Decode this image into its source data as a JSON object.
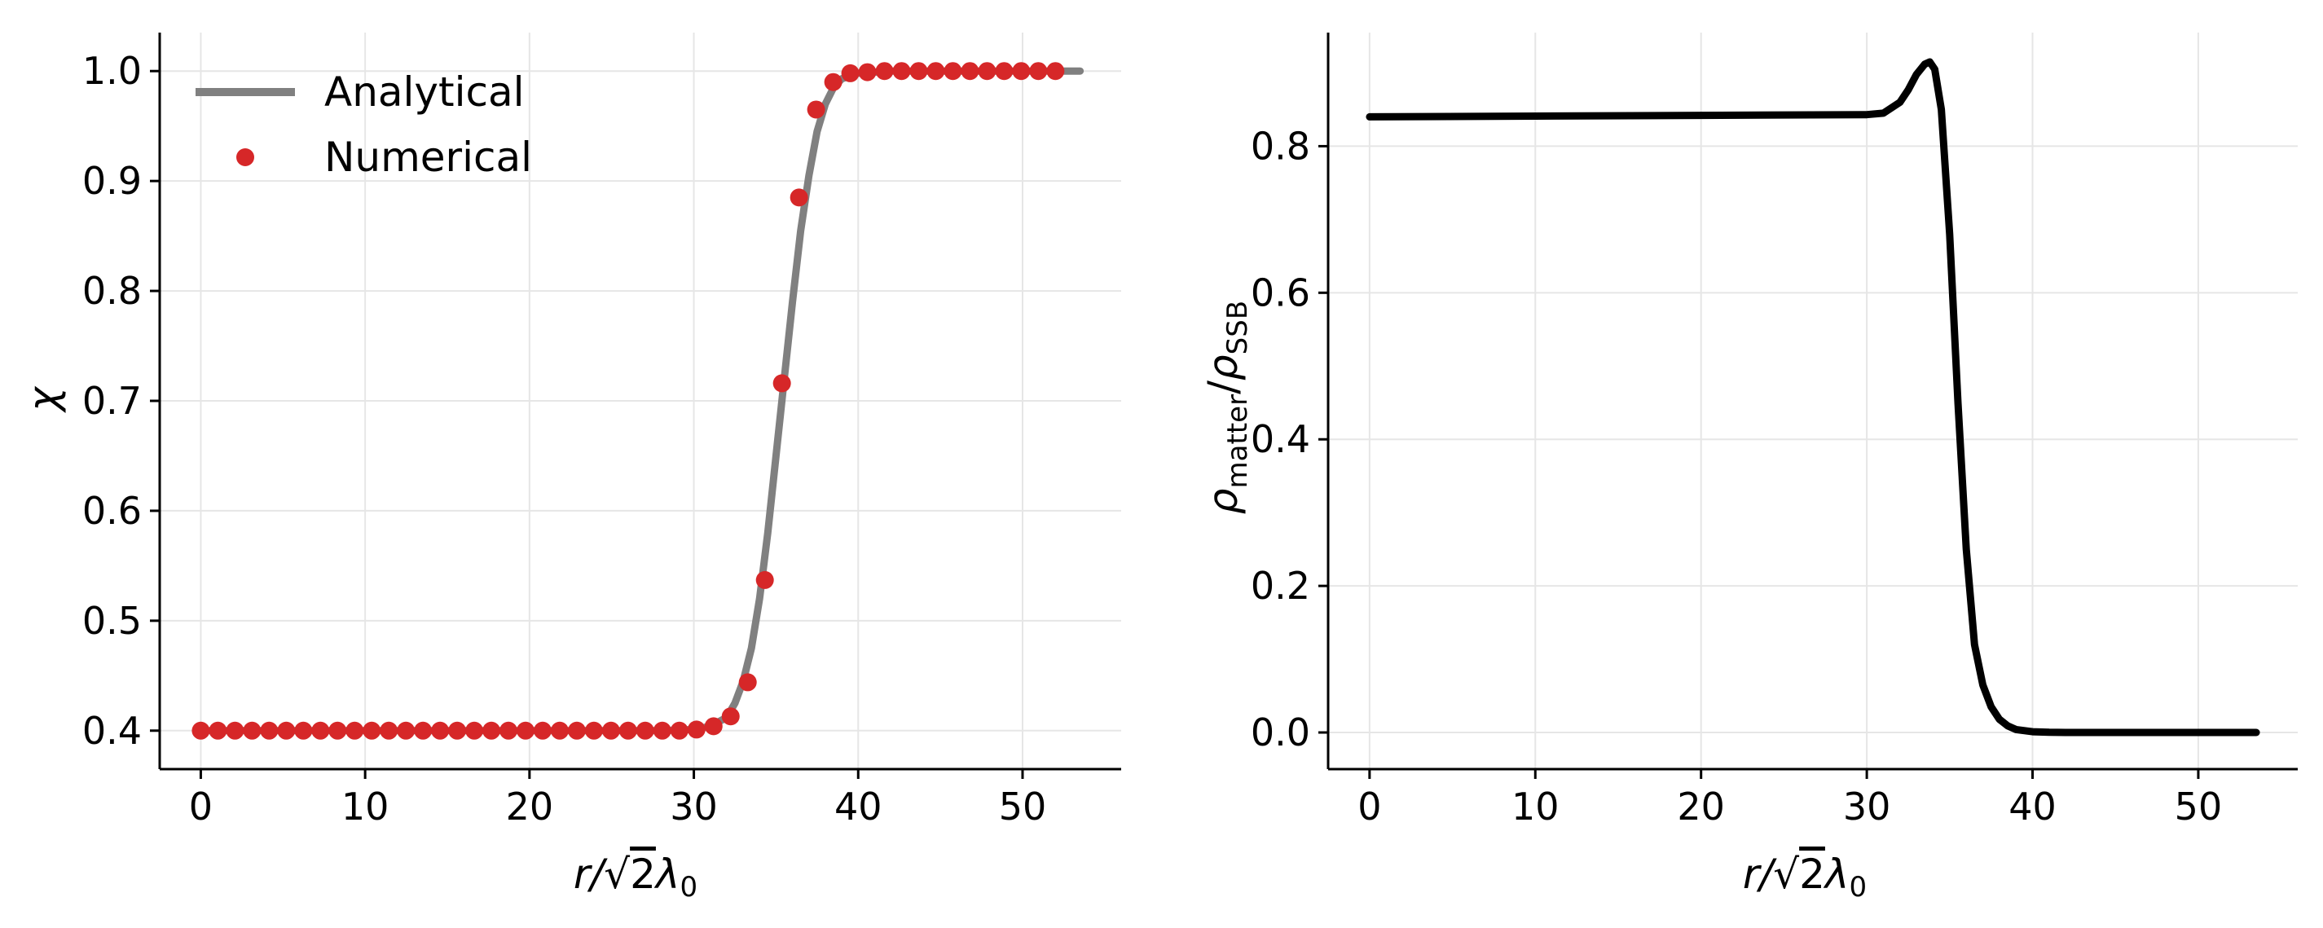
{
  "chart_data": [
    {
      "type": "line",
      "xlabel": "r/√2λ₀",
      "xlabel_parts": {
        "main": "r/",
        "sqrt_symbol": "√",
        "sqrt_arg": "2",
        "lambda": "λ",
        "sub": "0"
      },
      "ylabel": "χ",
      "xlim": [
        -2.5,
        56
      ],
      "ylim": [
        0.365,
        1.035
      ],
      "xticks": [
        0,
        10,
        20,
        30,
        40,
        50
      ],
      "xtick_labels": [
        "0",
        "10",
        "20",
        "30",
        "40",
        "50"
      ],
      "yticks": [
        0.4,
        0.5,
        0.6,
        0.7,
        0.8,
        0.9,
        1.0
      ],
      "ytick_labels": [
        "0.4",
        "0.5",
        "0.6",
        "0.7",
        "0.8",
        "0.9",
        "1.0"
      ],
      "grid": true,
      "legend": {
        "placement": "top-left",
        "entries": [
          {
            "label": "Analytical",
            "marker": "line",
            "color": "#808080"
          },
          {
            "label": "Numerical",
            "marker": "dot",
            "color": "#d62728"
          }
        ]
      },
      "series": [
        {
          "name": "Analytical",
          "style": "line",
          "color": "#808080",
          "x": [
            0,
            5,
            10,
            15,
            20,
            25,
            28,
            30,
            31,
            32,
            32.5,
            33,
            33.5,
            34,
            34.5,
            35,
            35.5,
            36,
            36.5,
            37,
            37.5,
            38,
            38.5,
            39,
            40,
            41,
            42,
            45,
            50,
            53.5
          ],
          "y": [
            0.4,
            0.4,
            0.4,
            0.4,
            0.4,
            0.4,
            0.4,
            0.401,
            0.404,
            0.412,
            0.425,
            0.445,
            0.475,
            0.52,
            0.58,
            0.65,
            0.72,
            0.79,
            0.855,
            0.905,
            0.945,
            0.97,
            0.985,
            0.993,
            0.998,
            0.999,
            1.0,
            1.0,
            1.0,
            1.0
          ]
        },
        {
          "name": "Numerical",
          "style": "scatter",
          "color": "#d62728",
          "x": [
            0,
            1.04,
            2.08,
            3.12,
            4.16,
            5.2,
            6.24,
            7.28,
            8.32,
            9.36,
            10.4,
            11.44,
            12.48,
            13.52,
            14.56,
            15.6,
            16.64,
            17.68,
            18.72,
            19.76,
            20.8,
            21.84,
            22.88,
            23.92,
            24.96,
            26.0,
            27.04,
            28.08,
            29.12,
            30.16,
            31.2,
            32.24,
            33.28,
            34.32,
            35.36,
            36.4,
            37.44,
            38.48,
            39.52,
            40.56,
            41.6,
            42.64,
            43.68,
            44.72,
            45.76,
            46.8,
            47.84,
            48.88,
            49.92,
            50.96,
            52.0
          ],
          "y": [
            0.4,
            0.4,
            0.4,
            0.4,
            0.4,
            0.4,
            0.4,
            0.4,
            0.4,
            0.4,
            0.4,
            0.4,
            0.4,
            0.4,
            0.4,
            0.4,
            0.4,
            0.4,
            0.4,
            0.4,
            0.4,
            0.4,
            0.4,
            0.4,
            0.4,
            0.4,
            0.4,
            0.4,
            0.4,
            0.401,
            0.404,
            0.413,
            0.444,
            0.537,
            0.716,
            0.885,
            0.965,
            0.99,
            0.998,
            0.999,
            1.0,
            1.0,
            1.0,
            1.0,
            1.0,
            1.0,
            1.0,
            1.0,
            1.0,
            1.0,
            1.0
          ]
        }
      ]
    },
    {
      "type": "line",
      "xlabel": "r/√2λ₀",
      "xlabel_parts": {
        "main": "r/",
        "sqrt_symbol": "√",
        "sqrt_arg": "2",
        "lambda": "λ",
        "sub": "0"
      },
      "ylabel": "ρmatter/ρSSB",
      "ylabel_parts": {
        "rho": "ρ",
        "sub1": "matter",
        "slash": "/",
        "sub2": "SSB"
      },
      "xlim": [
        -2.5,
        56
      ],
      "ylim": [
        -0.05,
        0.955
      ],
      "xticks": [
        0,
        10,
        20,
        30,
        40,
        50
      ],
      "xtick_labels": [
        "0",
        "10",
        "20",
        "30",
        "40",
        "50"
      ],
      "yticks": [
        0.0,
        0.2,
        0.4,
        0.6,
        0.8
      ],
      "ytick_labels": [
        "0.0",
        "0.2",
        "0.4",
        "0.6",
        "0.8"
      ],
      "grid": true,
      "series": [
        {
          "color": "#000000",
          "x": [
            0,
            10,
            20,
            30,
            31,
            32,
            32.5,
            33,
            33.5,
            33.8,
            34.1,
            34.5,
            35,
            35.5,
            36,
            36.5,
            37,
            37.5,
            38,
            38.5,
            39,
            40,
            41,
            42,
            45,
            50,
            53.5
          ],
          "y": [
            0.84,
            0.841,
            0.842,
            0.843,
            0.845,
            0.86,
            0.877,
            0.898,
            0.912,
            0.915,
            0.905,
            0.85,
            0.68,
            0.45,
            0.25,
            0.12,
            0.065,
            0.035,
            0.018,
            0.009,
            0.004,
            0.001,
            0.0003,
            0.0,
            0.0,
            0.0,
            0.0
          ]
        }
      ]
    }
  ]
}
